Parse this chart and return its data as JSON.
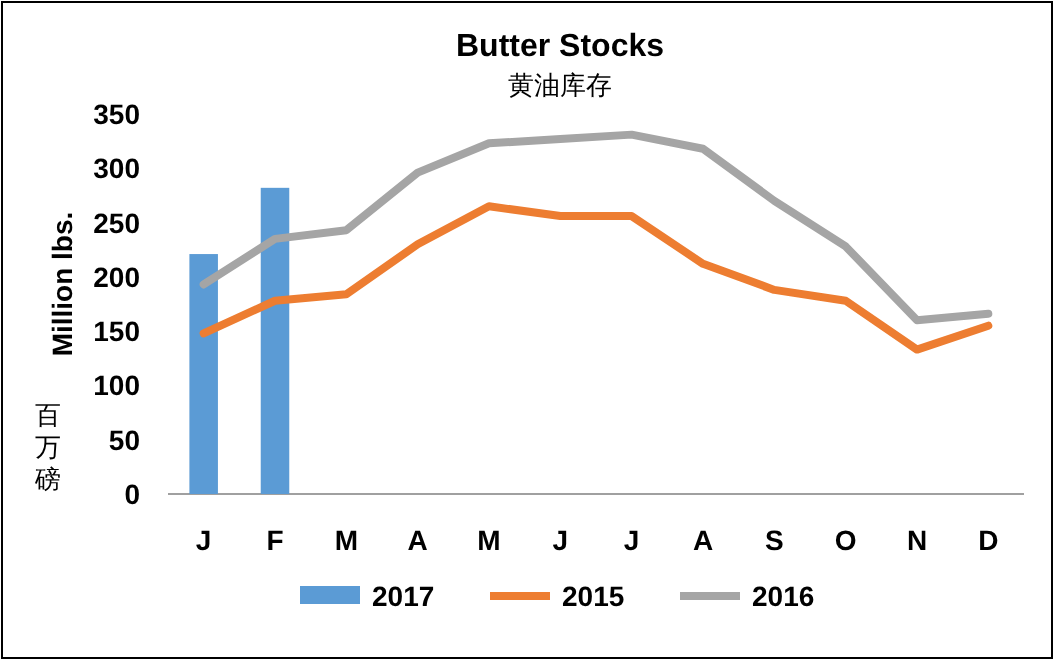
{
  "chart_data": {
    "type": "line",
    "title": "Butter Stocks",
    "subtitle": "黄油库存",
    "ylabel": "Million lbs.",
    "annotations": [
      "百万磅"
    ],
    "categories": [
      "J",
      "F",
      "M",
      "A",
      "M",
      "J",
      "J",
      "A",
      "S",
      "O",
      "N",
      "D"
    ],
    "series": [
      {
        "name": "2017",
        "type": "bar",
        "color": "#5b9bd5",
        "values": [
          221,
          282,
          null,
          null,
          null,
          null,
          null,
          null,
          null,
          null,
          null,
          null
        ]
      },
      {
        "name": "2015",
        "color": "#ed7d31",
        "values": [
          148,
          178,
          184,
          230,
          265,
          256,
          256,
          212,
          188,
          178,
          133,
          155
        ]
      },
      {
        "name": "2016",
        "color": "#a5a5a5",
        "values": [
          193,
          235,
          243,
          296,
          323,
          327,
          331,
          318,
          270,
          228,
          160,
          166
        ]
      }
    ],
    "ylim": [
      0,
      350
    ],
    "yticks": [
      0,
      50,
      100,
      150,
      200,
      250,
      300,
      350
    ],
    "grid": false,
    "legend": "bottom",
    "marker": "none",
    "line_style": "solid"
  }
}
